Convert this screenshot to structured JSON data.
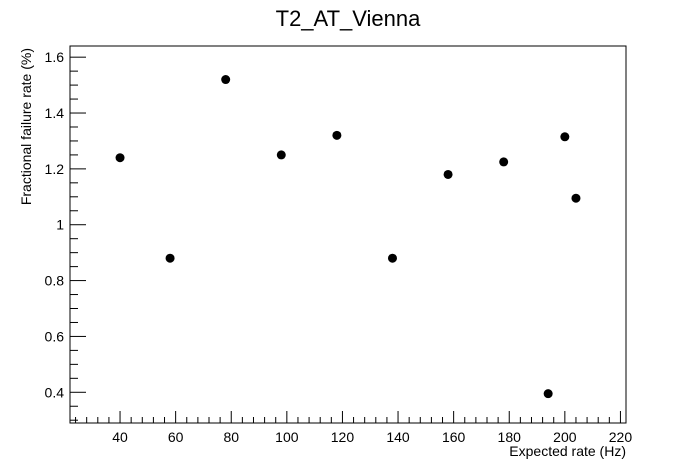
{
  "chart_data": {
    "type": "scatter",
    "title": "T2_AT_Vienna",
    "xlabel": "Expected rate (Hz)",
    "ylabel": "Fractional failure rate (%)",
    "xlim": [
      22,
      222
    ],
    "ylim": [
      0.29,
      1.64
    ],
    "x_ticks": [
      40,
      60,
      80,
      100,
      120,
      140,
      160,
      180,
      200,
      220
    ],
    "y_ticks": [
      0.4,
      0.6,
      0.8,
      1,
      1.2,
      1.4,
      1.6
    ],
    "x_tick_labels": [
      "40",
      "60",
      "80",
      "100",
      "120",
      "140",
      "160",
      "180",
      "200",
      "220"
    ],
    "y_tick_labels": [
      "0.4",
      "0.6",
      "0.8",
      "1",
      "1.2",
      "1.4",
      "1.6"
    ],
    "grid": false,
    "legend": "none",
    "marker_color": "#000000",
    "points": [
      {
        "x": 40,
        "y": 1.24
      },
      {
        "x": 58,
        "y": 0.88
      },
      {
        "x": 78,
        "y": 1.52
      },
      {
        "x": 98,
        "y": 1.25
      },
      {
        "x": 118,
        "y": 1.32
      },
      {
        "x": 138,
        "y": 0.88
      },
      {
        "x": 158,
        "y": 1.18
      },
      {
        "x": 178,
        "y": 1.225
      },
      {
        "x": 194,
        "y": 0.395
      },
      {
        "x": 200,
        "y": 1.315
      },
      {
        "x": 204,
        "y": 1.095
      }
    ]
  }
}
